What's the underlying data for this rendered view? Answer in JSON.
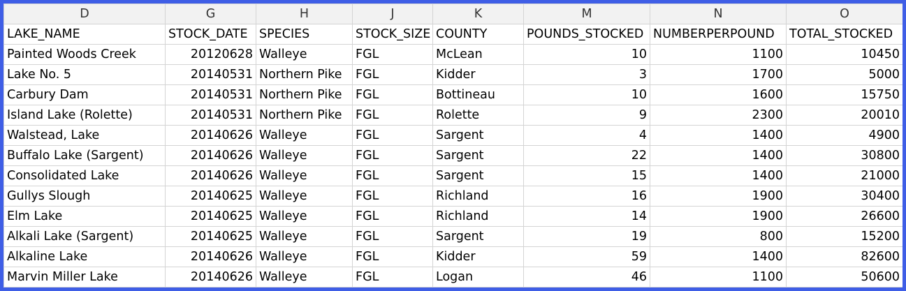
{
  "sheet": {
    "column_letters": [
      "D",
      "G",
      "H",
      "J",
      "K",
      "M",
      "N",
      "O"
    ],
    "headers": [
      "LAKE_NAME",
      "STOCK_DATE",
      "SPECIES",
      "STOCK_SIZE",
      "COUNTY",
      "POUNDS_STOCKED",
      "NUMBERPERPOUND",
      "TOTAL_STOCKED"
    ],
    "rows": [
      [
        "Painted Woods Creek",
        "20120628",
        "Walleye",
        "FGL",
        "McLean",
        "10",
        "1100",
        "10450"
      ],
      [
        "Lake No. 5",
        "20140531",
        "Northern Pike",
        "FGL",
        "Kidder",
        "3",
        "1700",
        "5000"
      ],
      [
        "Carbury Dam",
        "20140531",
        "Northern Pike",
        "FGL",
        "Bottineau",
        "10",
        "1600",
        "15750"
      ],
      [
        "Island Lake (Rolette)",
        "20140531",
        "Northern Pike",
        "FGL",
        "Rolette",
        "9",
        "2300",
        "20010"
      ],
      [
        "Walstead, Lake",
        "20140626",
        "Walleye",
        "FGL",
        "Sargent",
        "4",
        "1400",
        "4900"
      ],
      [
        "Buffalo Lake (Sargent)",
        "20140626",
        "Walleye",
        "FGL",
        "Sargent",
        "22",
        "1400",
        "30800"
      ],
      [
        "Consolidated Lake",
        "20140626",
        "Walleye",
        "FGL",
        "Sargent",
        "15",
        "1400",
        "21000"
      ],
      [
        "Gullys Slough",
        "20140625",
        "Walleye",
        "FGL",
        "Richland",
        "16",
        "1900",
        "30400"
      ],
      [
        "Elm Lake",
        "20140625",
        "Walleye",
        "FGL",
        "Richland",
        "14",
        "1900",
        "26600"
      ],
      [
        "Alkali Lake (Sargent)",
        "20140625",
        "Walleye",
        "FGL",
        "Sargent",
        "19",
        "800",
        "15200"
      ],
      [
        "Alkaline Lake",
        "20140626",
        "Walleye",
        "FGL",
        "Kidder",
        "59",
        "1400",
        "82600"
      ],
      [
        "Marvin Miller Lake",
        "20140626",
        "Walleye",
        "FGL",
        "Logan",
        "46",
        "1100",
        "50600"
      ]
    ],
    "border_color": "#3f5ee6"
  }
}
